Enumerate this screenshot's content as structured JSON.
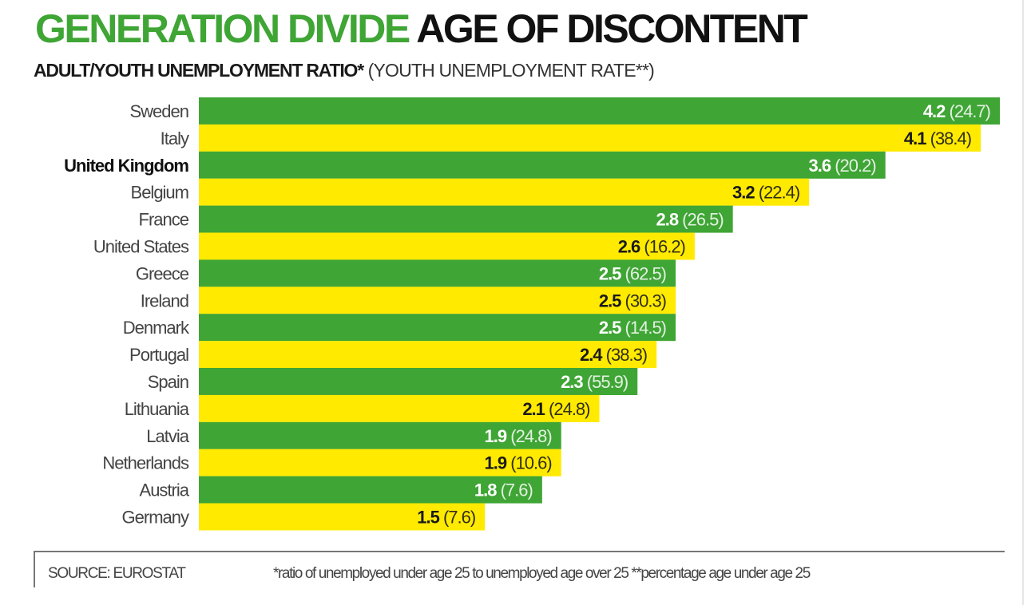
{
  "chart_data": {
    "type": "bar",
    "orientation": "horizontal",
    "title_green": "GENERATION DIVIDE",
    "title_black": "AGE OF DISCONTENT",
    "subtitle_bold": "ADULT/YOUTH UNEMPLOYMENT RATIO*",
    "subtitle_regular": "(YOUTH UNEMPLOYMENT RATE**)",
    "categories": [
      "Sweden",
      "Italy",
      "United Kingdom",
      "Belgium",
      "France",
      "United States",
      "Greece",
      "Ireland",
      "Denmark",
      "Portugal",
      "Spain",
      "Lithuania",
      "Latvia",
      "Netherlands",
      "Austria",
      "Germany"
    ],
    "highlighted_category": "United Kingdom",
    "series": [
      {
        "name": "Adult/youth unemployment ratio",
        "values": [
          4.2,
          4.1,
          3.6,
          3.2,
          2.8,
          2.6,
          2.5,
          2.5,
          2.5,
          2.4,
          2.3,
          2.1,
          1.9,
          1.9,
          1.8,
          1.5
        ]
      },
      {
        "name": "Youth unemployment rate (%)",
        "values": [
          24.7,
          38.4,
          20.2,
          22.4,
          26.5,
          16.2,
          62.5,
          30.3,
          14.5,
          38.3,
          55.9,
          24.8,
          24.8,
          10.6,
          7.6,
          7.6
        ]
      }
    ],
    "data_labels_primary": [
      "4.2",
      "4.1",
      "3.6",
      "3.2",
      "2.8",
      "2.6",
      "2.5",
      "2.5",
      "2.5",
      "2.4",
      "2.3",
      "2.1",
      "1.9",
      "1.9",
      "1.8",
      "1.5"
    ],
    "data_labels_secondary": [
      "(24.7)",
      "(38.4)",
      "(20.2)",
      "(22.4)",
      "(26.5)",
      "(16.2)",
      "(62.5)",
      "(30.3)",
      "(14.5)",
      "(38.3)",
      "(55.9)",
      "(24.8)",
      "(24.8)",
      "(10.6)",
      "(7.6)",
      "(7.6)"
    ],
    "bar_colors": [
      "#3fa535",
      "#ffea00"
    ],
    "label_colors": [
      "#ffffff",
      "#1a1a1a"
    ],
    "xlabel": "",
    "ylabel": "",
    "xlim": [
      0,
      4.2
    ],
    "grid": false,
    "legend": "none"
  },
  "footer": {
    "source": "SOURCE: EUROSTAT",
    "note": "*ratio of unemployed under age 25 to unemployed age over 25 **percentage age under age 25"
  }
}
